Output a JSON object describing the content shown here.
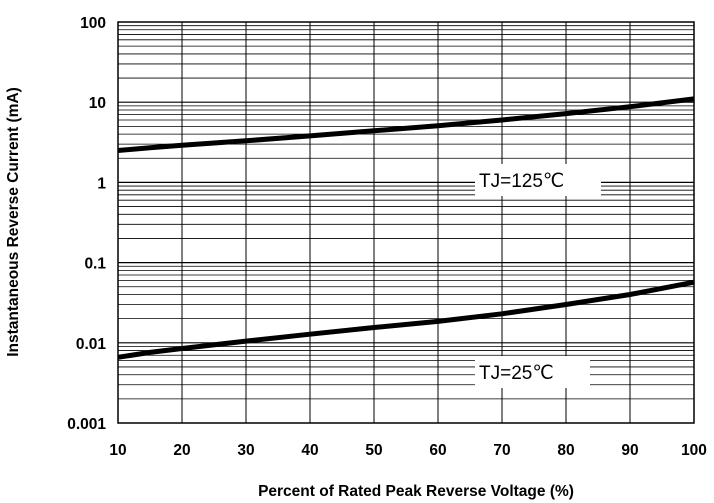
{
  "chart_data": {
    "type": "line",
    "xlabel": "Percent of Rated Peak Reverse Voltage (%)",
    "ylabel": "Instantaneous Reverse Current (mA)",
    "xlim": [
      10,
      100
    ],
    "ylim": [
      0.001,
      100
    ],
    "yscale": "log",
    "grid": true,
    "x_ticks": [
      "10",
      "20",
      "30",
      "40",
      "50",
      "60",
      "70",
      "80",
      "90",
      "100"
    ],
    "y_ticks": [
      "0.001",
      "0.01",
      "0.1",
      "1",
      "10",
      "100"
    ],
    "series": [
      {
        "name": "TJ=125℃",
        "x": [
          10,
          15,
          20,
          30,
          40,
          50,
          60,
          70,
          80,
          90,
          100
        ],
        "y": [
          2.5,
          2.7,
          2.9,
          3.3,
          3.8,
          4.4,
          5.1,
          6.0,
          7.2,
          8.8,
          11
        ]
      },
      {
        "name": "TJ=25℃",
        "x": [
          10,
          15,
          20,
          30,
          40,
          50,
          60,
          70,
          80,
          90,
          100
        ],
        "y": [
          0.0066,
          0.0076,
          0.0085,
          0.0105,
          0.0128,
          0.0155,
          0.0185,
          0.023,
          0.03,
          0.04,
          0.057
        ]
      }
    ],
    "annotations": [
      "TJ=125℃",
      "TJ=25℃"
    ]
  }
}
